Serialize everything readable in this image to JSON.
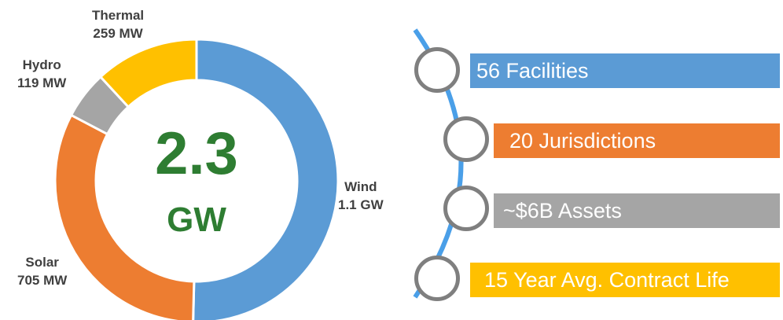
{
  "chart_data": {
    "type": "pie",
    "subtype": "donut",
    "title": "",
    "center_value": "2.3",
    "center_unit": "GW",
    "slices": [
      {
        "name": "Wind",
        "value_label": "1.1 GW",
        "value_mw": 1100,
        "color": "#5b9bd5"
      },
      {
        "name": "Solar",
        "value_label": "705 MW",
        "value_mw": 705,
        "color": "#ed7d31"
      },
      {
        "name": "Hydro",
        "value_label": "119 MW",
        "value_mw": 119,
        "color": "#a5a5a5"
      },
      {
        "name": "Thermal",
        "value_label": "259 MW",
        "value_mw": 259,
        "color": "#ffc000"
      }
    ]
  },
  "highlights": {
    "line_color": "#4a9fe8",
    "node_border_color": "#7f7f7f",
    "items": [
      {
        "label": "56 Facilities",
        "color": "#5b9bd5"
      },
      {
        "label": "20 Jurisdictions",
        "color": "#ed7d31"
      },
      {
        "label": "~$6B Assets",
        "color": "#a5a5a5"
      },
      {
        "label": "15 Year Avg. Contract Life",
        "color": "#ffc000"
      }
    ]
  }
}
